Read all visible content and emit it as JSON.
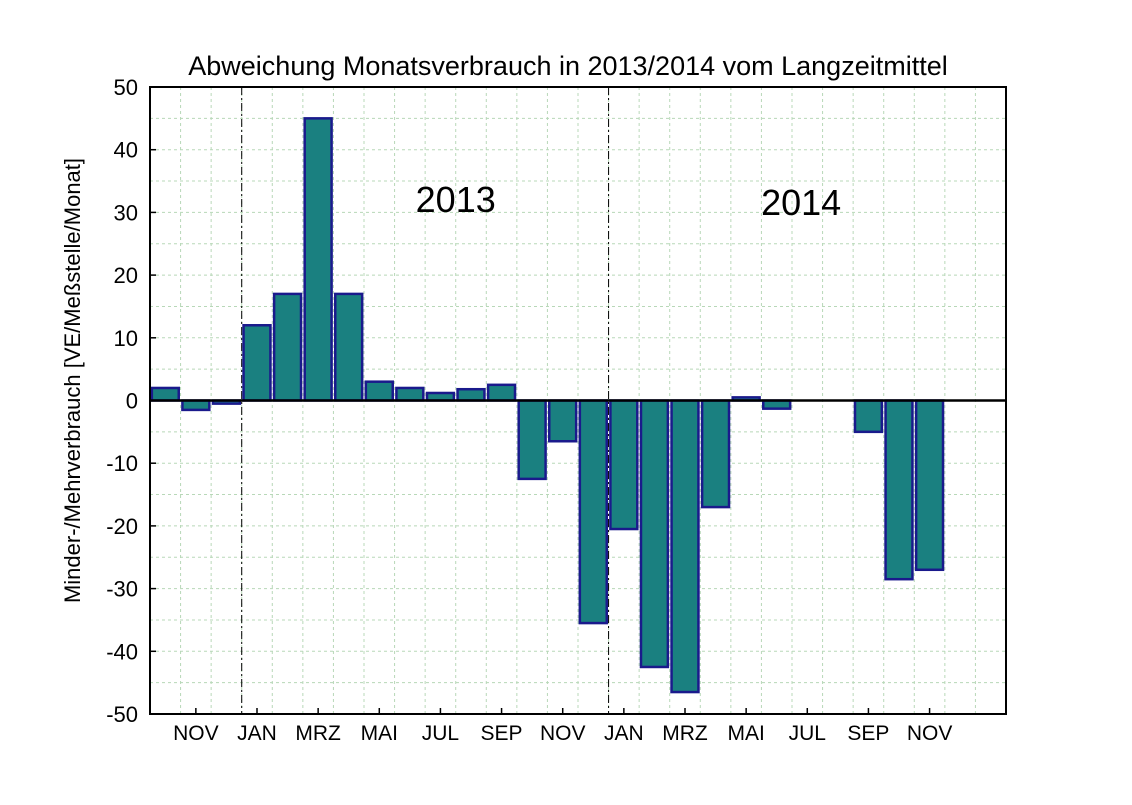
{
  "chart_data": {
    "type": "bar",
    "title": "Abweichung Monatsverbrauch in 2013/2014 vom Langzeitmittel",
    "ylabel": "Minder-/Mehrverbrauch [VE/Meßstelle/Monat]",
    "xlabel": "",
    "ylim": [
      -50,
      50
    ],
    "yticks": [
      50,
      40,
      30,
      20,
      10,
      0,
      -10,
      -20,
      -30,
      -40,
      -50
    ],
    "xlim": [
      0,
      28
    ],
    "grid": true,
    "legend": "none",
    "x_tick_labels": [
      {
        "label": "NOV",
        "x": 1.5
      },
      {
        "label": "JAN",
        "x": 3.5
      },
      {
        "label": "MRZ",
        "x": 5.5
      },
      {
        "label": "MAI",
        "x": 7.5
      },
      {
        "label": "JUL",
        "x": 9.5
      },
      {
        "label": "SEP",
        "x": 11.5
      },
      {
        "label": "NOV",
        "x": 13.5
      },
      {
        "label": "JAN",
        "x": 15.5
      },
      {
        "label": "MRZ",
        "x": 17.5
      },
      {
        "label": "MAI",
        "x": 19.5
      },
      {
        "label": "JUL",
        "x": 21.5
      },
      {
        "label": "SEP",
        "x": 23.5
      },
      {
        "label": "NOV",
        "x": 25.5
      }
    ],
    "bars": [
      {
        "x": 0.5,
        "value": 2
      },
      {
        "x": 1.5,
        "value": -1.5
      },
      {
        "x": 2.5,
        "value": -0.5
      },
      {
        "x": 3.5,
        "value": 12
      },
      {
        "x": 4.5,
        "value": 17
      },
      {
        "x": 5.5,
        "value": 45
      },
      {
        "x": 6.5,
        "value": 17
      },
      {
        "x": 7.5,
        "value": 3
      },
      {
        "x": 8.5,
        "value": 2
      },
      {
        "x": 9.5,
        "value": 1.2
      },
      {
        "x": 10.5,
        "value": 1.8
      },
      {
        "x": 11.5,
        "value": 2.5
      },
      {
        "x": 12.5,
        "value": -12.5
      },
      {
        "x": 13.5,
        "value": -6.5
      },
      {
        "x": 14.5,
        "value": -35.5
      },
      {
        "x": 15.5,
        "value": -20.5
      },
      {
        "x": 16.5,
        "value": -42.5
      },
      {
        "x": 17.5,
        "value": -46.5
      },
      {
        "x": 18.5,
        "value": -17
      },
      {
        "x": 19.5,
        "value": 0.5
      },
      {
        "x": 20.5,
        "value": -1.3
      },
      {
        "x": 23.5,
        "value": -5
      },
      {
        "x": 24.5,
        "value": -28.5
      },
      {
        "x": 25.5,
        "value": -27
      }
    ],
    "year_dividers": [
      3,
      15
    ],
    "annotations": [
      {
        "text": "2013",
        "x": 10,
        "y": 32
      },
      {
        "text": "2014",
        "x": 21.3,
        "y": 31.5
      }
    ],
    "colors": {
      "bar_fill": "#1a8080",
      "bar_edge": "#1a1a8c",
      "grid": "#b8d8b8",
      "zero_line": "#000000"
    }
  }
}
